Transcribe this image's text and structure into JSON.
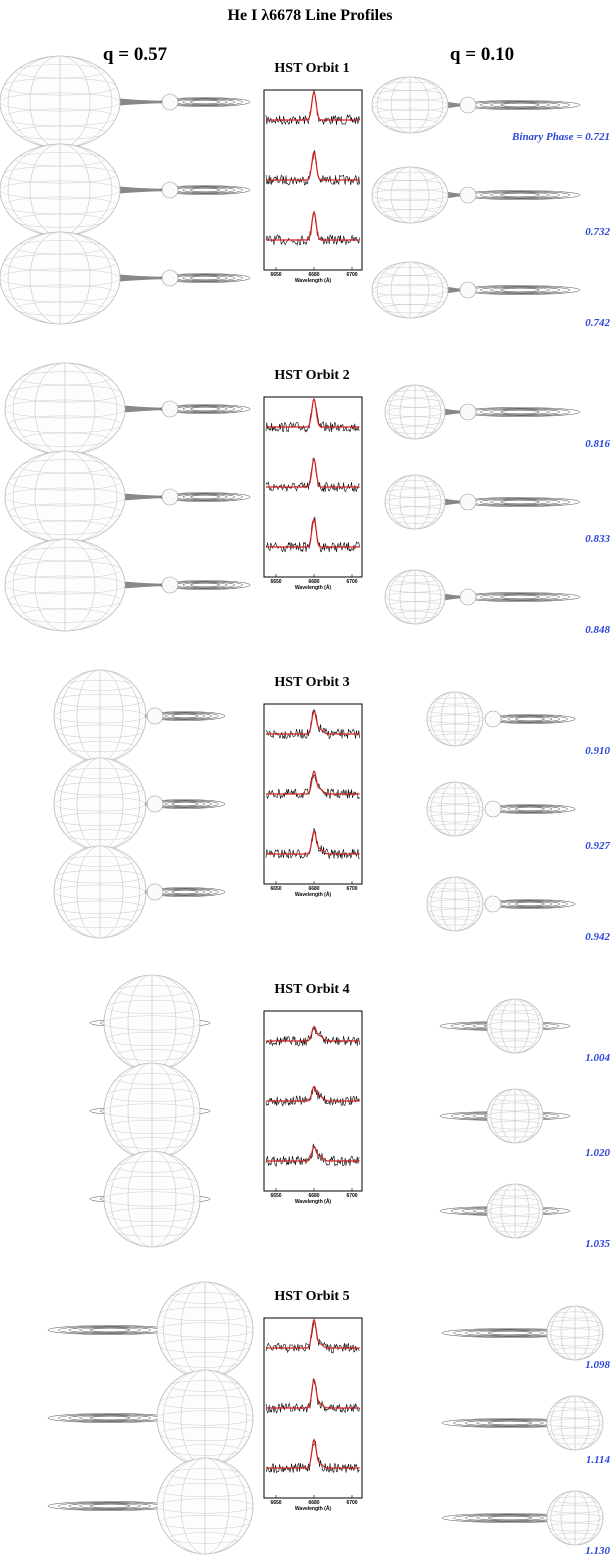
{
  "title": "He I λ6678  Line Profiles",
  "columns": [
    "q = 0.57",
    "q = 0.10"
  ],
  "orbits": [
    {
      "label": "HST Orbit 1",
      "phases": [
        "Binary Phase = 0.721",
        "0.732",
        "0.742"
      ],
      "ticks": [
        "6650",
        "6680",
        "6700"
      ],
      "axis_label": "Wavelength (Å)"
    },
    {
      "label": "HST Orbit 2",
      "phases": [
        "0.816",
        "0.833",
        "0.848"
      ],
      "ticks": [
        "6650",
        "6680",
        "6700"
      ],
      "axis_label": "Wavelength (Å)"
    },
    {
      "label": "HST Orbit 3",
      "phases": [
        "0.910",
        "0.927",
        "0.942"
      ],
      "ticks": [
        "6650",
        "6680",
        "6700"
      ],
      "axis_label": "Wavelength (Å)"
    },
    {
      "label": "HST Orbit 4",
      "phases": [
        "1.004",
        "1.020",
        "1.035"
      ],
      "ticks": [
        "6650",
        "6680",
        "6700"
      ],
      "axis_label": "Wavelength (Å)"
    },
    {
      "label": "HST Orbit 5",
      "phases": [
        "1.098",
        "1.114",
        "1.130"
      ],
      "ticks": [
        "6650",
        "6680",
        "6700"
      ],
      "axis_label": "Wavelength (Å)"
    }
  ]
}
